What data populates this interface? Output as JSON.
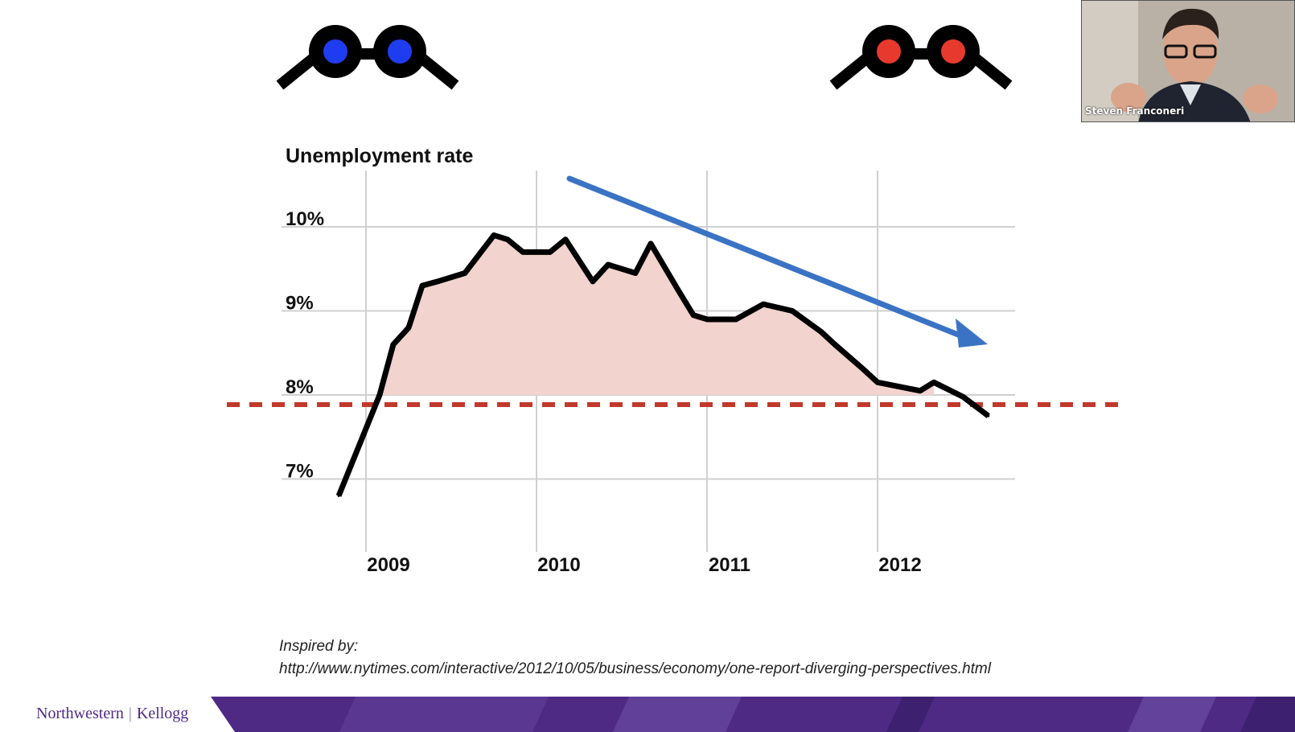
{
  "chart_data": {
    "type": "area",
    "title": "Unemployment rate",
    "xlabel": "",
    "ylabel": "",
    "y_ticks": [
      "7%",
      "8%",
      "9%",
      "10%"
    ],
    "x_ticks": [
      "2009",
      "2010",
      "2011",
      "2012"
    ],
    "xlim": [
      2008.84,
      2012.65
    ],
    "ylim": [
      6.6,
      10.7
    ],
    "grid": true,
    "reference_line": {
      "value": 8.0,
      "style": "dashed",
      "color": "#c0392b"
    },
    "trend_arrow": {
      "direction": "down",
      "color": "#3b73c4"
    },
    "series": [
      {
        "color": "#000000",
        "fill": "#f2d3ce",
        "x": [
          2008.84,
          2009.08,
          2009.16,
          2009.25,
          2009.33,
          2009.42,
          2009.58,
          2009.75,
          2009.83,
          2009.92,
          2010.08,
          2010.17,
          2010.33,
          2010.42,
          2010.58,
          2010.67,
          2010.83,
          2010.92,
          2011.0,
          2011.17,
          2011.33,
          2011.5,
          2011.67,
          2011.75,
          2011.92,
          2012.0,
          2012.25,
          2012.33,
          2012.5,
          2012.65
        ],
        "values": [
          6.8,
          8.0,
          8.6,
          8.8,
          9.3,
          9.35,
          9.45,
          9.9,
          9.85,
          9.7,
          9.7,
          9.85,
          9.35,
          9.55,
          9.45,
          9.8,
          9.25,
          8.95,
          8.9,
          8.9,
          9.08,
          9.0,
          8.75,
          8.6,
          8.3,
          8.15,
          8.05,
          8.15,
          7.98,
          7.75
        ]
      }
    ]
  },
  "source": {
    "label": "Inspired by:",
    "url": "http://www.nytimes.com/interactive/2012/10/05/business/economy/one-report-diverging-perspectives.html"
  },
  "footer": {
    "logo_left": "Northwestern",
    "logo_right": "Kellogg",
    "brand_color": "#4e2a84"
  },
  "glasses": {
    "left": {
      "icon": "blue-lens-glasses-icon",
      "lens_color": "#1f3df0"
    },
    "right": {
      "icon": "red-lens-glasses-icon",
      "lens_color": "#e8392e"
    }
  },
  "webcam": {
    "name": "Steven Franconeri"
  }
}
